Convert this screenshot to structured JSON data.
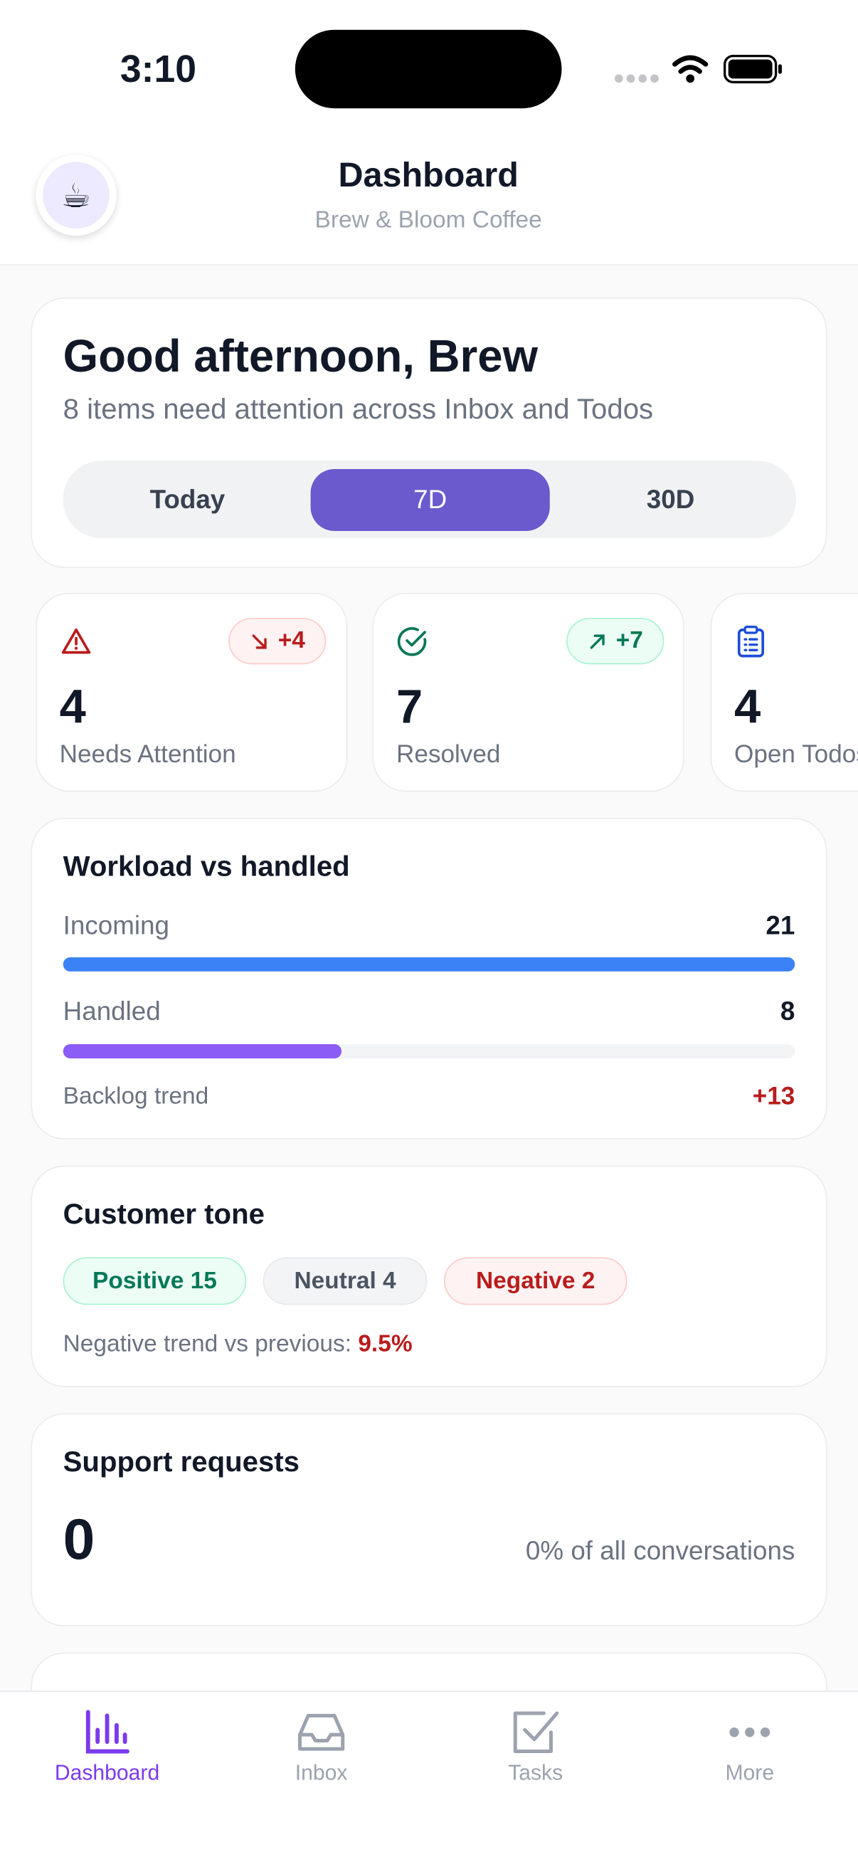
{
  "status": {
    "time": "3:10"
  },
  "header": {
    "avatar": "☕",
    "title": "Dashboard",
    "subtitle": "Brew & Bloom Coffee"
  },
  "greeting": {
    "title": "Good afternoon, Brew",
    "subtitle": "8 items need attention across Inbox and Todos",
    "ranges": [
      "Today",
      "7D",
      "30D"
    ],
    "active_range": 1
  },
  "stats": [
    {
      "badge": "+4",
      "value": "4",
      "label": "Needs Attention"
    },
    {
      "badge": "+7",
      "value": "7",
      "label": "Resolved"
    },
    {
      "value": "4",
      "label": "Open Todos"
    }
  ],
  "workload": {
    "title": "Workload vs handled",
    "rows": [
      {
        "label": "Incoming",
        "value": 21,
        "color": "#3b82f6"
      },
      {
        "label": "Handled",
        "value": 8,
        "color": "#8b5cf6"
      }
    ],
    "trend_label": "Backlog trend",
    "trend_value": "+13"
  },
  "tone": {
    "title": "Customer tone",
    "chips": [
      {
        "label": "Positive",
        "value": 15
      },
      {
        "label": "Neutral",
        "value": 4
      },
      {
        "label": "Negative",
        "value": 2
      }
    ],
    "footer_label": "Negative trend vs previous:",
    "footer_value": "9.5%"
  },
  "support": {
    "title": "Support requests",
    "value": "0",
    "note": "0% of all conversations"
  },
  "nav": {
    "items": [
      "Dashboard",
      "Inbox",
      "Tasks",
      "More"
    ],
    "active": 0
  }
}
